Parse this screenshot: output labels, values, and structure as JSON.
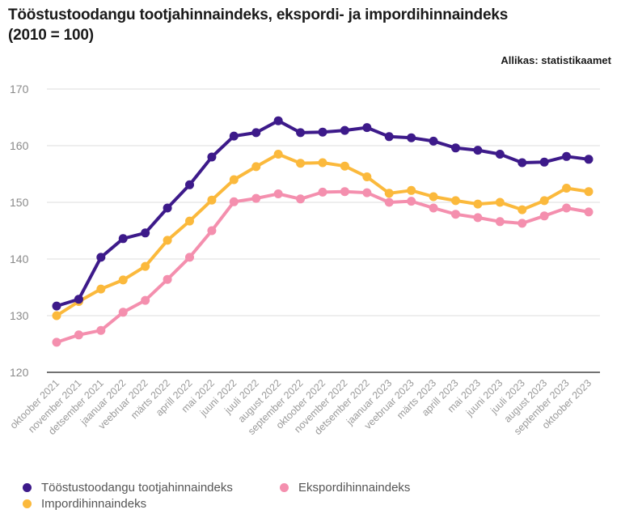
{
  "header": {
    "title_line1": "Tööstustoodangu tootjahinnaindeks, ekspordi- ja impordihinnaindeks",
    "title_line2": "(2010 = 100)",
    "source": "Allikas: statistikaamet"
  },
  "chart_data": {
    "type": "line",
    "title": "Tööstustoodangu tootjahinnaindeks, ekspordi- ja impordihinnaindeks (2010 = 100)",
    "xlabel": "",
    "ylabel": "",
    "ylim": [
      120,
      170
    ],
    "yticks": [
      120,
      130,
      140,
      150,
      160,
      170
    ],
    "grid": true,
    "legend_position": "bottom-left",
    "categories": [
      "oktoober 2021",
      "november 2021",
      "detsember 2021",
      "jaanuar 2022",
      "veebruar 2022",
      "märts 2022",
      "aprill 2022",
      "mai 2022",
      "juuni 2022",
      "juuli 2022",
      "august 2022",
      "september 2022",
      "oktoober 2022",
      "november 2022",
      "detsember 2022",
      "jaanuar 2023",
      "veebruar 2023",
      "märts 2023",
      "aprill 2023",
      "mai 2023",
      "juuni 2023",
      "juuli 2023",
      "august 2023",
      "september 2023",
      "oktoober 2023"
    ],
    "series": [
      {
        "name": "Tööstustoodangu tootjahinnaindeks",
        "color": "#3d1a8a",
        "values": [
          131.7,
          132.9,
          140.3,
          143.6,
          144.6,
          149.0,
          153.1,
          158.0,
          161.7,
          162.3,
          164.4,
          162.3,
          162.4,
          162.7,
          163.2,
          161.6,
          161.4,
          160.8,
          159.6,
          159.2,
          158.5,
          157.0,
          157.1,
          158.1,
          157.6
        ]
      },
      {
        "name": "Impordihinnaindeks",
        "color": "#fbb93c",
        "values": [
          130.0,
          132.5,
          134.7,
          136.3,
          138.7,
          143.3,
          146.7,
          150.4,
          154.0,
          156.3,
          158.5,
          156.9,
          157.0,
          156.4,
          154.5,
          151.6,
          152.1,
          151.0,
          150.3,
          149.7,
          150.0,
          148.7,
          150.3,
          152.5,
          151.9
        ]
      },
      {
        "name": "Ekspordihinnaindeks",
        "color": "#f48fae",
        "values": [
          125.3,
          126.6,
          127.4,
          130.6,
          132.7,
          136.4,
          140.3,
          145.0,
          150.1,
          150.7,
          151.5,
          150.6,
          151.8,
          151.9,
          151.7,
          150.0,
          150.2,
          149.0,
          147.9,
          147.3,
          146.6,
          146.3,
          147.6,
          149.0,
          148.3
        ]
      }
    ]
  },
  "legend": {
    "items": [
      {
        "label": "Tööstustoodangu tootjahinnaindeks",
        "color": "#3d1a8a"
      },
      {
        "label": "Ekspordihinnaindeks",
        "color": "#f48fae"
      },
      {
        "label": "Impordihinnaindeks",
        "color": "#fbb93c"
      }
    ]
  }
}
